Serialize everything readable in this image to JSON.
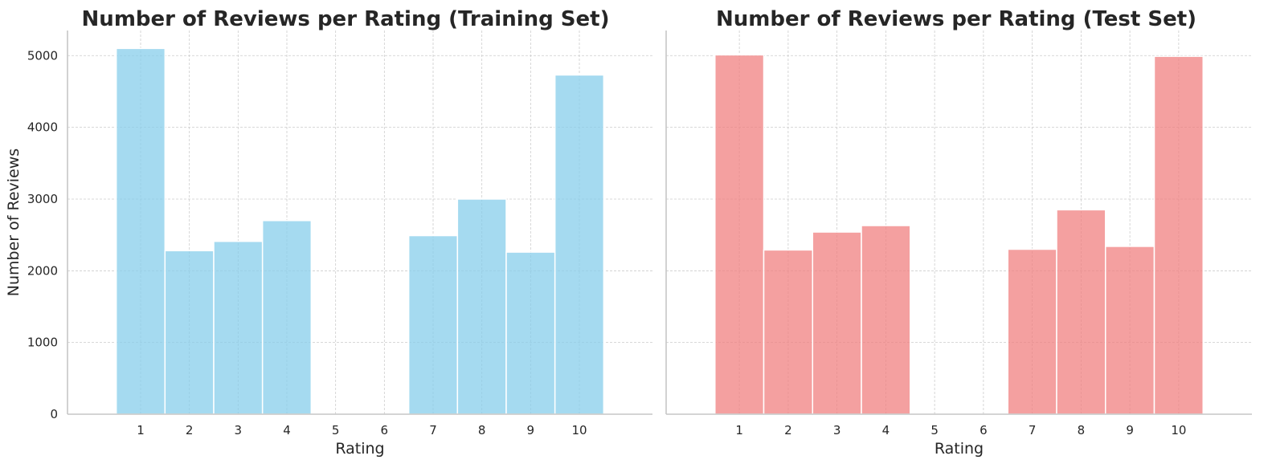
{
  "chart_data": [
    {
      "type": "bar",
      "title": "Number of Reviews per Rating (Training Set)",
      "xlabel": "Rating",
      "ylabel": "Number of Reviews",
      "categories": [
        "1",
        "2",
        "3",
        "4",
        "5",
        "6",
        "7",
        "8",
        "9",
        "10"
      ],
      "values": [
        5100,
        2280,
        2410,
        2700,
        0,
        0,
        2490,
        3000,
        2260,
        4730
      ],
      "yticks": [
        0,
        1000,
        2000,
        3000,
        4000,
        5000
      ],
      "ylim": [
        0,
        5350
      ],
      "grid": true,
      "color": "#87ceeb"
    },
    {
      "type": "bar",
      "title": "Number of Reviews per Rating (Test Set)",
      "xlabel": "Rating",
      "ylabel": "",
      "categories": [
        "1",
        "2",
        "3",
        "4",
        "5",
        "6",
        "7",
        "8",
        "9",
        "10"
      ],
      "values": [
        5010,
        2290,
        2540,
        2630,
        0,
        0,
        2300,
        2850,
        2340,
        4990
      ],
      "yticks": [
        0,
        1000,
        2000,
        3000,
        4000,
        5000
      ],
      "ylim": [
        0,
        5350
      ],
      "grid": true,
      "color": "#f08080"
    }
  ]
}
